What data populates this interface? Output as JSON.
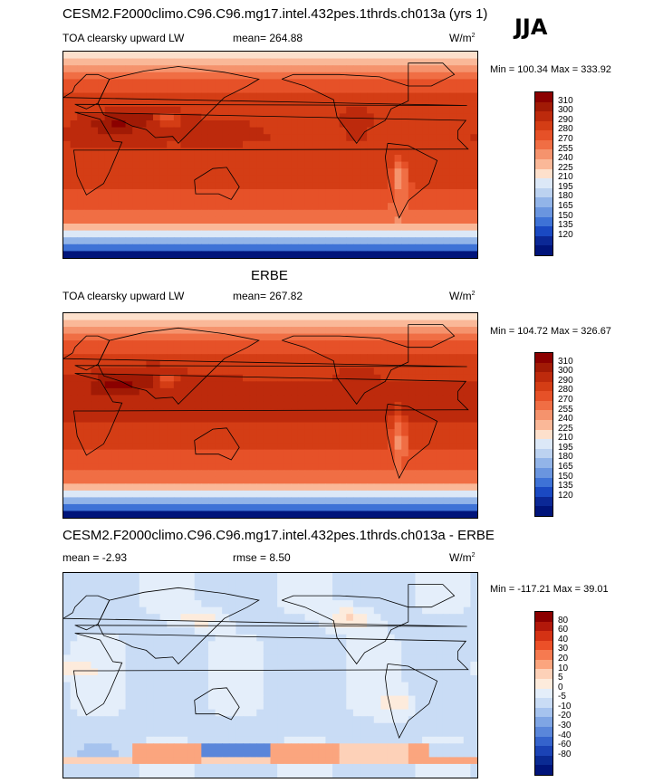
{
  "season": "JJA",
  "units_prefix": "W/m",
  "units_sup": "2",
  "panels": [
    {
      "title": "CESM2.F2000climo.C96.C96.mg17.intel.432pes.1thrds.ch013a (yrs 1)",
      "variable": "TOA clearsky upward LW",
      "mean_label": "mean= 264.88",
      "rmse_label": "",
      "minmax": "Min = 100.34 Max = 333.92",
      "kind": "model"
    },
    {
      "title": "ERBE",
      "variable": "TOA clearsky upward LW",
      "mean_label": "mean= 267.82",
      "rmse_label": "",
      "minmax": "Min = 104.72 Max = 326.67",
      "kind": "obs"
    },
    {
      "title": "CESM2.F2000climo.C96.C96.mg17.intel.432pes.1thrds.ch013a - ERBE",
      "variable": "",
      "mean_label": "mean =   -2.93",
      "rmse_label": "rmse =    8.50",
      "minmax": "Min = -117.21 Max =  39.01",
      "kind": "diff"
    }
  ],
  "colorbars": {
    "field": {
      "labels": [
        "310",
        "300",
        "290",
        "280",
        "270",
        "255",
        "240",
        "225",
        "210",
        "195",
        "180",
        "165",
        "150",
        "135",
        "120"
      ],
      "colors": [
        "#8b0000",
        "#a11a05",
        "#bd2a0c",
        "#d43d15",
        "#e65128",
        "#f06e44",
        "#f5936d",
        "#fab898",
        "#fde0cc",
        "#dce8f7",
        "#bcd2f0",
        "#92b4e8",
        "#6a95df",
        "#3e72d6",
        "#1a49c2",
        "#0b2896",
        "#00147a"
      ]
    },
    "diff": {
      "labels": [
        "80",
        "60",
        "40",
        "30",
        "20",
        "10",
        "5",
        "0",
        "-5",
        "-10",
        "-20",
        "-30",
        "-40",
        "-60",
        "-80"
      ],
      "colors": [
        "#8b0000",
        "#b2180a",
        "#d43214",
        "#ec5028",
        "#f67a50",
        "#fba57e",
        "#fdd1b8",
        "#fdebdc",
        "#e4eefa",
        "#c9dcf5",
        "#a6c3ee",
        "#7fa5e4",
        "#5a86da",
        "#3563cc",
        "#1b43b5",
        "#0a2a93",
        "#00147a"
      ]
    }
  }
}
